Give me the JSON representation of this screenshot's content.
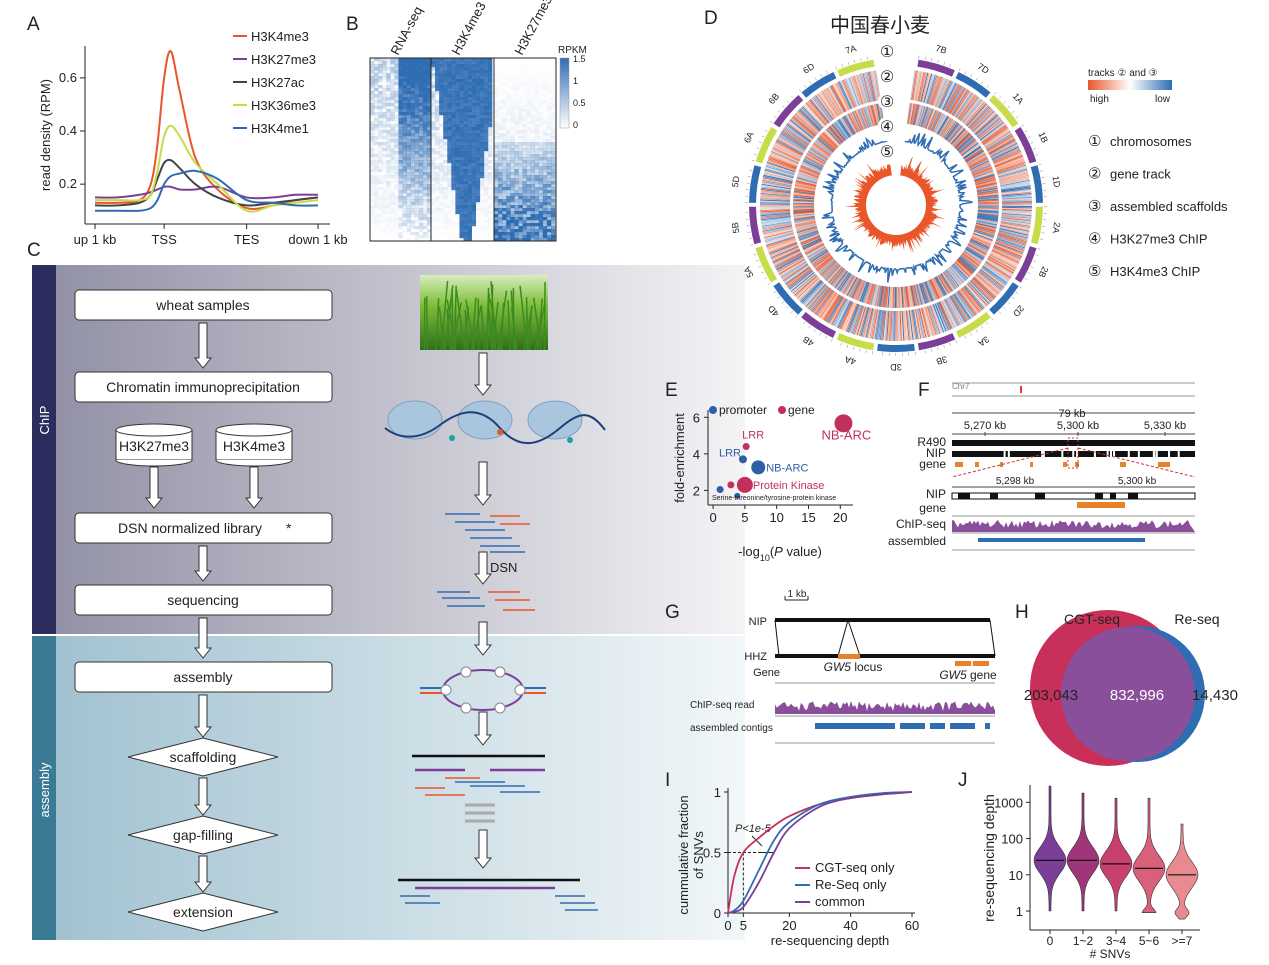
{
  "panels": [
    "A",
    "B",
    "C",
    "D",
    "E",
    "F",
    "G",
    "H",
    "I",
    "J"
  ],
  "chart_data": [
    {
      "type": "line",
      "ylabel": "read density (RPM)",
      "x": [
        0,
        10,
        20,
        25,
        28,
        31,
        34,
        38,
        45,
        55,
        68,
        80,
        90,
        100
      ],
      "xlim": [
        0,
        100
      ],
      "xticks": [
        {
          "value": 0,
          "label": "up 1 kb"
        },
        {
          "value": 31,
          "label": "TSS"
        },
        {
          "value": 68,
          "label": "TES"
        },
        {
          "value": 100,
          "label": "down 1 kb"
        }
      ],
      "ylim": [
        0.05,
        0.72
      ],
      "yticks": [
        0.2,
        0.4,
        0.6
      ],
      "series": [
        {
          "name": "H3K4me3",
          "color": "#e8562a",
          "values": [
            0.13,
            0.13,
            0.14,
            0.2,
            0.35,
            0.6,
            0.7,
            0.55,
            0.3,
            0.18,
            0.11,
            0.12,
            0.14,
            0.15
          ]
        },
        {
          "name": "H3K27me3",
          "color": "#7b3f98",
          "values": [
            0.15,
            0.15,
            0.16,
            0.17,
            0.18,
            0.19,
            0.19,
            0.18,
            0.18,
            0.19,
            0.15,
            0.15,
            0.16,
            0.16
          ]
        },
        {
          "name": "H3K27ac",
          "color": "#444444",
          "values": [
            0.12,
            0.12,
            0.13,
            0.16,
            0.22,
            0.28,
            0.29,
            0.26,
            0.2,
            0.15,
            0.12,
            0.13,
            0.14,
            0.15
          ]
        },
        {
          "name": "H3K36me3",
          "color": "#c8dc4a",
          "values": [
            0.14,
            0.14,
            0.14,
            0.16,
            0.25,
            0.38,
            0.42,
            0.38,
            0.28,
            0.2,
            0.1,
            0.12,
            0.13,
            0.14
          ]
        },
        {
          "name": "H3K4me1",
          "color": "#2f6db3",
          "values": [
            0.1,
            0.1,
            0.1,
            0.11,
            0.14,
            0.2,
            0.23,
            0.24,
            0.25,
            0.22,
            0.14,
            0.13,
            0.12,
            0.12
          ]
        }
      ]
    },
    {
      "type": "scatter",
      "ylabel": "fold-enrichment",
      "xlabel": [
        "-log",
        "10",
        "(",
        "P",
        " value)"
      ],
      "xlim": [
        -0.8,
        22
      ],
      "ylim": [
        1.2,
        6.4
      ],
      "xticks": [
        0,
        5,
        10,
        15,
        20
      ],
      "yticks": [
        2,
        4,
        6
      ],
      "series": [
        {
          "name": "promoter",
          "color": "#2f5fa8",
          "x": [
            1.1,
            3.8,
            4.7,
            7.1
          ],
          "values": [
            2.05,
            1.7,
            3.7,
            3.26
          ],
          "sizes": [
            3.5,
            3,
            4,
            7
          ],
          "point_labels": [
            null,
            null,
            "LRR",
            "NB-ARC"
          ]
        },
        {
          "name": "gene",
          "color": "#c0305a",
          "x": [
            2.8,
            5.2,
            5,
            20.5
          ],
          "values": [
            2.3,
            4.4,
            2.3,
            5.67
          ],
          "sizes": [
            3.5,
            3.5,
            8,
            9
          ],
          "point_labels": [
            null,
            "LRR",
            "Protein Kinase",
            "NB-ARC"
          ]
        }
      ],
      "annotations": [
        "Serine-threonine/tyrosine-protein kinase"
      ]
    },
    {
      "type": "line",
      "ylabel": [
        "cummulative fraction",
        "of SNVs"
      ],
      "xlabel": "re-sequencing depth",
      "x": [
        0,
        2,
        5,
        10,
        15,
        20,
        30,
        40,
        50,
        60
      ],
      "xlim": [
        0,
        60
      ],
      "xticks": [
        0,
        5,
        20,
        40,
        60
      ],
      "ylim": [
        0,
        1
      ],
      "yticks": [
        0,
        0.5,
        1
      ],
      "legend": "lower right",
      "series": [
        {
          "name": "CGT-seq only",
          "color": "#c8305a",
          "values": [
            0,
            0.3,
            0.5,
            0.62,
            0.72,
            0.8,
            0.9,
            0.95,
            0.98,
            1
          ]
        },
        {
          "name": "Re-Seq only",
          "color": "#2f6db3",
          "values": [
            0,
            0.02,
            0.1,
            0.35,
            0.6,
            0.75,
            0.9,
            0.96,
            0.99,
            1
          ]
        },
        {
          "name": "common",
          "color": "#7b3f98",
          "values": [
            0,
            0.01,
            0.05,
            0.25,
            0.5,
            0.7,
            0.88,
            0.95,
            0.98,
            1
          ]
        }
      ],
      "annotations": [
        "P<1e-5"
      ]
    },
    {
      "type": "violin",
      "ylabel": "re-sequencing depth",
      "xlabel": "# SNVs",
      "log": true,
      "categories": [
        "0",
        "1~2",
        "3~4",
        "5~6",
        ">=7"
      ],
      "values": [
        25,
        25,
        20,
        15,
        10
      ],
      "mins": [
        1,
        1,
        1,
        0.9,
        0.6
      ],
      "maxs": [
        2800,
        1800,
        1300,
        1300,
        250
      ],
      "colors": [
        "#7b3f98",
        "#a0357a",
        "#c8406e",
        "#d8607a",
        "#e88a90"
      ],
      "ylim": [
        0.3,
        3000
      ],
      "yticks": [
        1,
        10,
        100,
        1000
      ]
    }
  ],
  "heatmap": {
    "columns": [
      "RNA-seq",
      "H3K4me3",
      "H3K27me3"
    ],
    "colorbar_title": "RPKM",
    "colorbar_ticks": [
      "1.5",
      "1",
      "0.5",
      "0"
    ]
  },
  "flowchart": {
    "sections": [
      "ChIP",
      "assembly"
    ],
    "steps": [
      "wheat samples",
      "Chromatin immunoprecipitation",
      "DSN normalized library",
      "sequencing",
      "assembly",
      "scaffolding",
      "gap-filling",
      "extension"
    ],
    "marks": [
      "H3K27me3",
      "H3K4me3"
    ],
    "star": "*",
    "dsn_label": "DSN"
  },
  "circos": {
    "title": "中国春小麦",
    "chromosomes": [
      "7B",
      "7D",
      "1A",
      "1B",
      "1D",
      "2A",
      "2B",
      "2D",
      "3A",
      "3B",
      "3D",
      "4A",
      "4B",
      "4D",
      "5A",
      "5B",
      "5D",
      "6A",
      "6B",
      "6D",
      "7A"
    ],
    "genome_colors": {
      "A": "#c8dc4a",
      "B": "#7b3f98",
      "D": "#2f6db3"
    },
    "track_numbers": [
      "①",
      "②",
      "③",
      "④",
      "⑤"
    ],
    "legend_title": "tracks ② and ③",
    "legend_high": "high",
    "legend_low": "low",
    "legend_items": [
      "chromosomes",
      "gene track",
      "assembled scaffolds",
      "H3K27me3 ChIP",
      "H3K4me3 ChIP"
    ]
  },
  "browser_f": {
    "chrom": "Chr7",
    "span": "79 kb",
    "ticks": [
      "5,270 kb",
      "5,300 kb",
      "5,330 kb"
    ],
    "tracks": [
      "R490",
      "NIP",
      "gene"
    ],
    "zoom_ticks": [
      "5,298 kb",
      "5,300 kb"
    ],
    "zoom_tracks": [
      "NIP",
      "gene",
      "ChIP-seq",
      "assembled"
    ]
  },
  "browser_g": {
    "scale": "1 kb",
    "tracks": [
      "NIP",
      "HHZ",
      "Gene"
    ],
    "locus": [
      "GW5",
      " locus"
    ],
    "gene_label": [
      "GW5",
      " gene"
    ],
    "read_track": "ChIP-seq read",
    "contig_track": "assembled contigs"
  },
  "venn": {
    "sets": [
      "CGT-seq",
      "Re-seq"
    ],
    "counts": [
      "203,043",
      "832,996",
      "14,430"
    ]
  }
}
